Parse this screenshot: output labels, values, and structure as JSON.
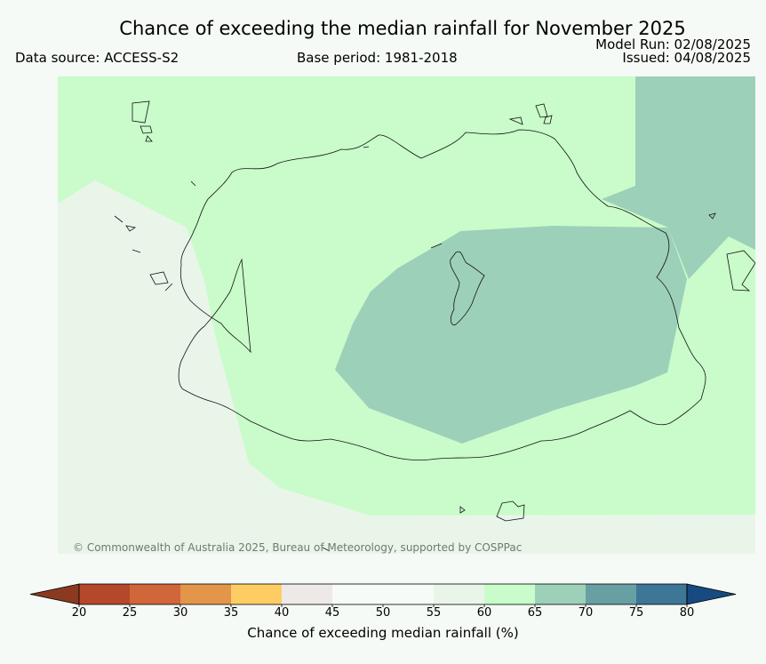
{
  "header": {
    "title": "Chance of exceeding the median rainfall for November 2025",
    "data_source": "Data source: ACCESS-S2",
    "base_period": "Base period: 1981-2018",
    "model_run": "Model Run: 02/08/2025",
    "issued": "Issued: 04/08/2025"
  },
  "map": {
    "copyright": "© Commonwealth of Australia 2025, Bureau of Meteorology, supported by COSPPac",
    "categories": [
      {
        "range": "45-55",
        "color": "#f7fbf8"
      },
      {
        "range": "55-60",
        "color": "#eaf5ea"
      },
      {
        "range": "60-65",
        "color": "#c9fcca"
      },
      {
        "range": "65-70",
        "color": "#9dd0b9"
      }
    ]
  },
  "legend": {
    "label": "Chance of exceeding median rainfall (%)",
    "ticks": [
      "20",
      "25",
      "30",
      "35",
      "40",
      "45",
      "50",
      "55",
      "60",
      "65",
      "70",
      "75",
      "80"
    ],
    "colors": [
      "#8b3a1f",
      "#b5472a",
      "#d0663a",
      "#e39549",
      "#fdcd64",
      "#ede9e6",
      "#f7fbf8",
      "#f7fbf8",
      "#eaf5ea",
      "#c9fcca",
      "#9dd0b9",
      "#689fa3",
      "#3d7696",
      "#174a80"
    ]
  }
}
